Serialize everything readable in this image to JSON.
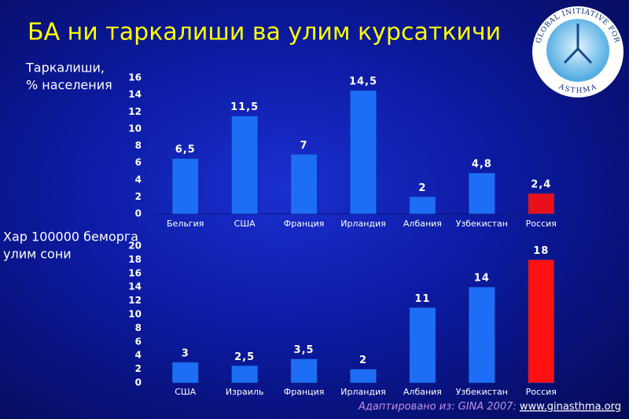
{
  "title": "БА ни таркалиши ва улим курсаткичи",
  "logo": {
    "top": "GLOBAL INITIATIVE FOR",
    "bottom": "ASTHMA"
  },
  "source": {
    "text": "Адаптировано из: GINA 2007:",
    "link": "www.ginasthma.org"
  },
  "chart_data": [
    {
      "type": "bar",
      "ylabel": [
        "Таркалиши,",
        "% населения"
      ],
      "categories": [
        "Бельгия",
        "США",
        "Франция",
        "Ирландия",
        "Албания",
        "Узбекистан",
        "Россия"
      ],
      "values": [
        6.5,
        11.5,
        7,
        14.5,
        2,
        4.8,
        2.4
      ],
      "value_labels": [
        "6,5",
        "11,5",
        "7",
        "14,5",
        "2",
        "4,8",
        "2,4"
      ],
      "colors": [
        "#1e6ef5",
        "#1e6ef5",
        "#1e6ef5",
        "#1e6ef5",
        "#1e6ef5",
        "#1e6ef5",
        "#e8101a"
      ],
      "ylim": [
        0,
        16
      ],
      "yticks": [
        0,
        2,
        4,
        6,
        8,
        10,
        12,
        14,
        16
      ]
    },
    {
      "type": "bar",
      "ylabel": [
        "Хар 100000 беморга",
        "улим сони"
      ],
      "categories": [
        "США",
        "Израиль",
        "Франция",
        "Ирландия",
        "Албания",
        "Узбекистан",
        "Россия"
      ],
      "values": [
        3,
        2.5,
        3.5,
        2,
        11,
        14,
        18
      ],
      "value_labels": [
        "3",
        "2,5",
        "3,5",
        "2",
        "11",
        "14",
        "18"
      ],
      "colors": [
        "#1e6ef5",
        "#1e6ef5",
        "#1e6ef5",
        "#1e6ef5",
        "#1e6ef5",
        "#1e6ef5",
        "#ff1010"
      ],
      "ylim": [
        0,
        20
      ],
      "yticks": [
        0,
        2,
        4,
        6,
        8,
        10,
        12,
        14,
        16,
        18,
        20
      ]
    }
  ]
}
